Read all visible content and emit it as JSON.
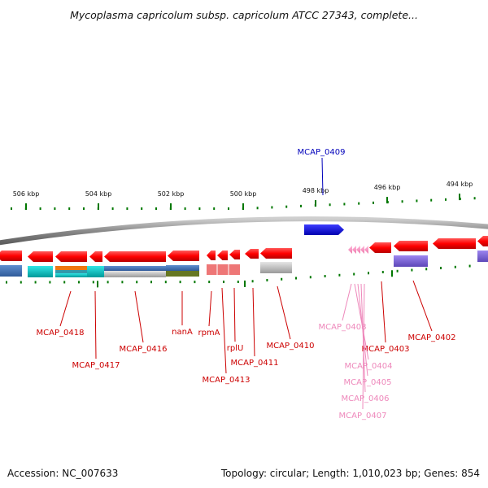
{
  "title": "Mycoplasma capricolum subsp. capricolum ATCC 27343, complete...",
  "footer": {
    "accession": "Accession: NC_007633",
    "summary": "Topology: circular; Length: 1,010,023 bp; Genes: 854"
  },
  "colors": {
    "forward_gene": "#ff0000",
    "reverse_gene": "#ff0000",
    "highlight_gene": "#0000dd",
    "faded_gene": "#ff99cc",
    "ruler_tick": "#007700",
    "backbone": "#888888",
    "label_red": "#cc0000",
    "label_blue": "#0000bb",
    "label_pink": "#ee88bb"
  },
  "ruler": [
    {
      "label": "506 kbp"
    },
    {
      "label": "504 kbp"
    },
    {
      "label": "502 kbp"
    },
    {
      "label": "500 kbp"
    },
    {
      "label": "498 kbp"
    },
    {
      "label": "496 kbp"
    },
    {
      "label": "494 kbp"
    }
  ],
  "gene_labels": [
    {
      "id": "MCAP_0409",
      "label": "MCAP_0409",
      "tone": "blue"
    },
    {
      "id": "MCAP_0418",
      "label": "MCAP_0418",
      "tone": "red"
    },
    {
      "id": "MCAP_0417",
      "label": "MCAP_0417",
      "tone": "red"
    },
    {
      "id": "MCAP_0416",
      "label": "MCAP_0416",
      "tone": "red"
    },
    {
      "id": "nanA",
      "label": "nanA",
      "tone": "red"
    },
    {
      "id": "rpmA",
      "label": "rpmA",
      "tone": "red"
    },
    {
      "id": "MCAP_0413",
      "label": "MCAP_0413",
      "tone": "red"
    },
    {
      "id": "rplU",
      "label": "rplU",
      "tone": "red"
    },
    {
      "id": "MCAP_0411",
      "label": "MCAP_0411",
      "tone": "red"
    },
    {
      "id": "MCAP_0410",
      "label": "MCAP_0410",
      "tone": "red"
    },
    {
      "id": "MCAP_0408",
      "label": "MCAP_0408",
      "tone": "pink"
    },
    {
      "id": "MCAP_0403",
      "label": "MCAP_0403",
      "tone": "red"
    },
    {
      "id": "MCAP_0402",
      "label": "MCAP_0402",
      "tone": "red"
    },
    {
      "id": "MCAP_0404",
      "label": "MCAP_0404",
      "tone": "pink"
    },
    {
      "id": "MCAP_0405",
      "label": "MCAP_0405",
      "tone": "pink"
    },
    {
      "id": "MCAP_0406",
      "label": "MCAP_0406",
      "tone": "pink"
    },
    {
      "id": "MCAP_0407",
      "label": "MCAP_0407",
      "tone": "pink"
    }
  ]
}
